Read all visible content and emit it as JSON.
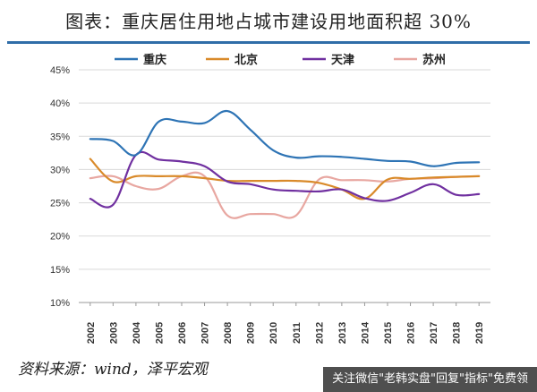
{
  "title": "图表：重庆居住用地占城市建设用地面积超 30%",
  "source": "资料来源：wind，泽平宏观",
  "watermark": "关注微信\"老韩实盘\"回复\"指标\"免费领",
  "colors": {
    "title_rule": "#2f6da8",
    "grid": "#d9d9d9",
    "axis": "#999999"
  },
  "chart_data": {
    "type": "line",
    "title": "",
    "xlabel": "",
    "ylabel": "",
    "ylim": [
      0.1,
      0.45
    ],
    "yticks": [
      "10%",
      "15%",
      "20%",
      "25%",
      "30%",
      "35%",
      "40%",
      "45%"
    ],
    "x": [
      "2002",
      "2003",
      "2004",
      "2005",
      "2006",
      "2007",
      "2008",
      "2009",
      "2010",
      "2011",
      "2012",
      "2013",
      "2014",
      "2015",
      "2016",
      "2017",
      "2018",
      "2019"
    ],
    "legend_position": "top",
    "grid": true,
    "series": [
      {
        "name": "重庆",
        "color": "#2e74b5",
        "values": [
          0.346,
          0.343,
          0.322,
          0.372,
          0.372,
          0.37,
          0.388,
          0.36,
          0.329,
          0.318,
          0.32,
          0.319,
          0.316,
          0.313,
          0.312,
          0.305,
          0.31,
          0.311
        ]
      },
      {
        "name": "北京",
        "color": "#d98a2a",
        "values": [
          0.316,
          0.282,
          0.29,
          0.29,
          0.29,
          0.287,
          0.283,
          0.283,
          0.283,
          0.283,
          0.28,
          0.27,
          0.256,
          0.285,
          0.286,
          0.288,
          0.289,
          0.29
        ]
      },
      {
        "name": "天津",
        "color": "#7030a0",
        "values": [
          0.256,
          0.247,
          0.322,
          0.315,
          0.312,
          0.305,
          0.282,
          0.278,
          0.27,
          0.268,
          0.267,
          0.27,
          0.257,
          0.253,
          0.265,
          0.278,
          0.262,
          0.263
        ]
      },
      {
        "name": "苏州",
        "color": "#e8a7a1",
        "values": [
          0.287,
          0.29,
          0.275,
          0.271,
          0.29,
          0.29,
          0.231,
          0.233,
          0.233,
          0.231,
          0.285,
          0.284,
          0.284,
          0.282,
          0.286,
          0.287,
          0.289,
          0.29
        ]
      }
    ]
  }
}
